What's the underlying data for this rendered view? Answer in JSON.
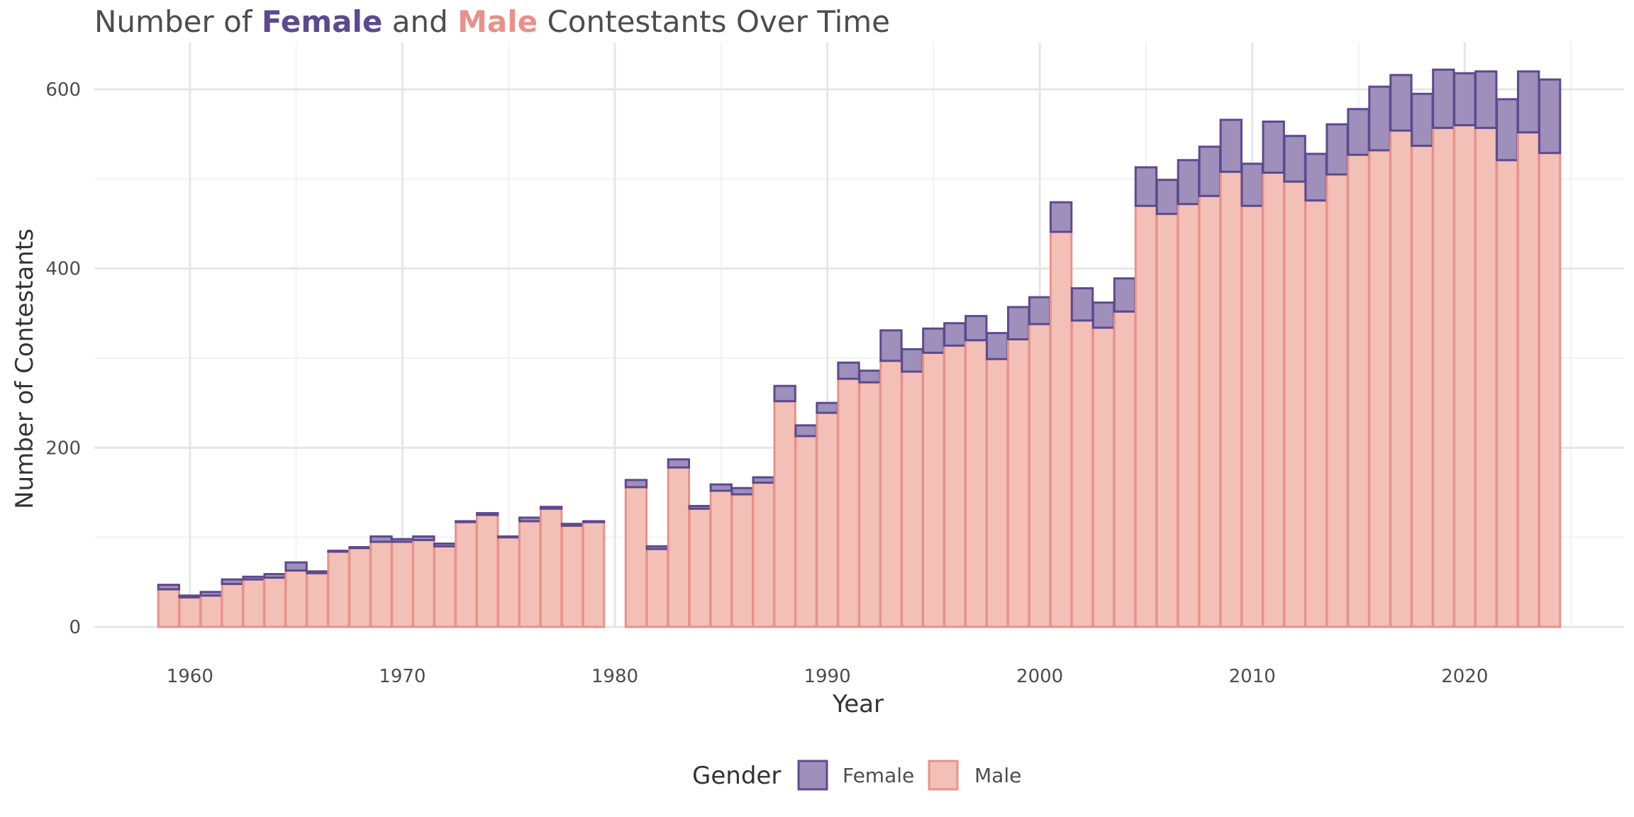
{
  "title": {
    "prefix": "Number of ",
    "female_word": "Female",
    "middle": " and ",
    "male_word": "Male",
    "suffix": " Contestants Over Time"
  },
  "colors": {
    "female_fill": "#9e8fbb",
    "female_stroke": "#5c4a8e",
    "male_fill": "#f2c0b6",
    "male_stroke": "#e8918a",
    "grid_major": "#e6e6e6",
    "grid_minor": "#f2f2f2",
    "text": "#4d4d4d"
  },
  "chart_data": {
    "type": "bar",
    "stacked": true,
    "xlabel": "Year",
    "ylabel": "Number of Contestants",
    "xlim": [
      1955.5,
      2027.5
    ],
    "ylim": [
      0,
      650
    ],
    "x_ticks": [
      1960,
      1970,
      1980,
      1990,
      2000,
      2010,
      2020
    ],
    "y_ticks": [
      0,
      200,
      400,
      600
    ],
    "grid": true,
    "legend": {
      "title": "Gender",
      "position": "bottom",
      "entries": [
        "Female",
        "Male"
      ]
    },
    "x": [
      1959,
      1960,
      1961,
      1962,
      1963,
      1964,
      1965,
      1966,
      1967,
      1968,
      1969,
      1970,
      1971,
      1972,
      1973,
      1974,
      1975,
      1976,
      1977,
      1978,
      1979,
      1981,
      1982,
      1983,
      1984,
      1985,
      1986,
      1987,
      1988,
      1989,
      1990,
      1991,
      1992,
      1993,
      1994,
      1995,
      1996,
      1997,
      1998,
      1999,
      2000,
      2001,
      2002,
      2003,
      2004,
      2005,
      2006,
      2007,
      2008,
      2009,
      2010,
      2011,
      2012,
      2013,
      2014,
      2015,
      2016,
      2017,
      2018,
      2019,
      2020,
      2021,
      2022,
      2023,
      2024
    ],
    "series": [
      {
        "name": "Female",
        "values": [
          5,
          2,
          4,
          5,
          3,
          4,
          9,
          2,
          1,
          1,
          6,
          3,
          4,
          3,
          1,
          2,
          1,
          4,
          2,
          2,
          1,
          8,
          3,
          9,
          3,
          7,
          7,
          6,
          17,
          12,
          11,
          18,
          13,
          34,
          25,
          27,
          25,
          27,
          29,
          36,
          30,
          33,
          36,
          28,
          37,
          43,
          38,
          49,
          55,
          58,
          47,
          57,
          51,
          52,
          56,
          51,
          71,
          62,
          58,
          65,
          58,
          63,
          68,
          68,
          82
        ]
      },
      {
        "name": "Male",
        "values": [
          42,
          33,
          35,
          48,
          53,
          55,
          63,
          60,
          84,
          88,
          95,
          95,
          97,
          90,
          117,
          125,
          100,
          118,
          132,
          113,
          117,
          156,
          87,
          178,
          132,
          152,
          148,
          161,
          252,
          213,
          239,
          277,
          273,
          297,
          285,
          306,
          314,
          320,
          299,
          321,
          338,
          441,
          342,
          334,
          352,
          470,
          461,
          472,
          481,
          508,
          470,
          507,
          497,
          476,
          505,
          527,
          532,
          554,
          537,
          557,
          560,
          557,
          521,
          552,
          529
        ]
      }
    ]
  }
}
